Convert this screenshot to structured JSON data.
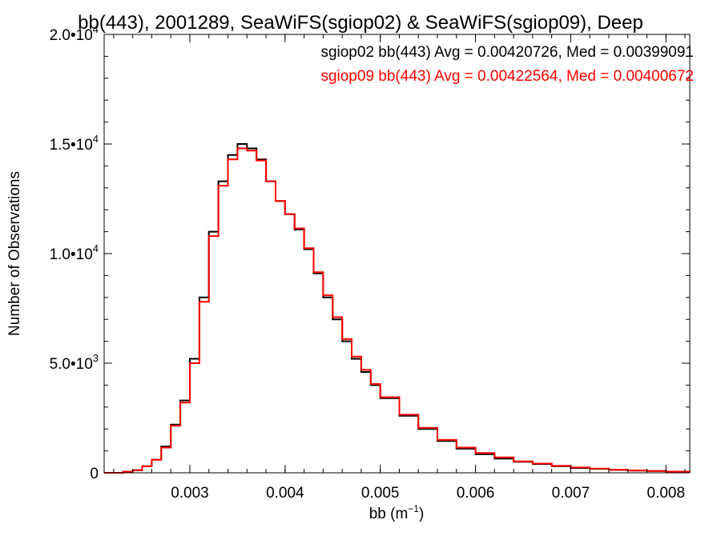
{
  "chart_data": {
    "type": "line",
    "title": "bb(443), 2001289, SeaWiFS(sgiop02) & SeaWiFS(sgiop09), Deep",
    "xlabel": "bb (m",
    "xlabel_sup": "−1",
    "xlabel_suffix": ")",
    "ylabel": "Number of Observations",
    "xlim": [
      0.0021,
      0.00825
    ],
    "ylim": [
      0,
      20000
    ],
    "x_ticks": [
      {
        "value": 0.003,
        "label": "0.003"
      },
      {
        "value": 0.004,
        "label": "0.004"
      },
      {
        "value": 0.005,
        "label": "0.005"
      },
      {
        "value": 0.006,
        "label": "0.006"
      },
      {
        "value": 0.007,
        "label": "0.007"
      },
      {
        "value": 0.008,
        "label": "0.008"
      }
    ],
    "y_ticks": [
      {
        "value": 0,
        "label": "0",
        "sup": ""
      },
      {
        "value": 5000,
        "label": "5.0•10",
        "sup": "3"
      },
      {
        "value": 10000,
        "label": "1.0•10",
        "sup": "4"
      },
      {
        "value": 15000,
        "label": "1.5•10",
        "sup": "4"
      },
      {
        "value": 20000,
        "label": "2.0•10",
        "sup": "4"
      }
    ],
    "legend": [
      {
        "text": "sgiop02 bb(443) Avg = 0.00420726, Med = 0.00399091",
        "color": "#000000"
      },
      {
        "text": "sgiop09 bb(443) Avg = 0.00422564, Med = 0.00400672",
        "color": "#ff0000"
      }
    ],
    "series": [
      {
        "color": "#000000",
        "x": [
          0.0021,
          0.0022,
          0.0023,
          0.0024,
          0.0025,
          0.0026,
          0.0027,
          0.0028,
          0.0029,
          0.003,
          0.0031,
          0.0032,
          0.0033,
          0.0034,
          0.0035,
          0.0036,
          0.0037,
          0.0038,
          0.0039,
          0.004,
          0.0041,
          0.0042,
          0.0043,
          0.0044,
          0.0045,
          0.0046,
          0.0047,
          0.0048,
          0.0049,
          0.005,
          0.0052,
          0.0054,
          0.0056,
          0.0058,
          0.006,
          0.0062,
          0.0064,
          0.0066,
          0.0068,
          0.007,
          0.0072,
          0.0074,
          0.0076,
          0.0078,
          0.008,
          0.00825
        ],
        "y": [
          0,
          0,
          50,
          120,
          300,
          600,
          1200,
          2200,
          3300,
          5200,
          8000,
          11000,
          13300,
          14500,
          15000,
          14800,
          14300,
          13300,
          12400,
          11800,
          11100,
          10200,
          9100,
          8000,
          7000,
          6000,
          5200,
          4600,
          4000,
          3400,
          2600,
          2000,
          1450,
          1100,
          850,
          650,
          500,
          400,
          300,
          220,
          180,
          130,
          100,
          80,
          50,
          30
        ]
      },
      {
        "color": "#ff0000",
        "x": [
          0.0021,
          0.0022,
          0.0023,
          0.0024,
          0.0025,
          0.0026,
          0.0027,
          0.0028,
          0.0029,
          0.003,
          0.0031,
          0.0032,
          0.0033,
          0.0034,
          0.0035,
          0.0036,
          0.0037,
          0.0038,
          0.0039,
          0.004,
          0.0041,
          0.0042,
          0.0043,
          0.0044,
          0.0045,
          0.0046,
          0.0047,
          0.0048,
          0.0049,
          0.005,
          0.0052,
          0.0054,
          0.0056,
          0.0058,
          0.006,
          0.0062,
          0.0064,
          0.0066,
          0.0068,
          0.007,
          0.0072,
          0.0074,
          0.0076,
          0.0078,
          0.008,
          0.00825
        ],
        "y": [
          0,
          0,
          50,
          120,
          300,
          600,
          1150,
          2150,
          3200,
          5000,
          7800,
          10800,
          13100,
          14300,
          14800,
          14700,
          14250,
          13300,
          12400,
          11800,
          11150,
          10250,
          9150,
          8100,
          7100,
          6100,
          5300,
          4700,
          4050,
          3450,
          2650,
          2050,
          1500,
          1150,
          900,
          700,
          520,
          420,
          320,
          240,
          190,
          140,
          110,
          85,
          55,
          35
        ]
      }
    ]
  }
}
